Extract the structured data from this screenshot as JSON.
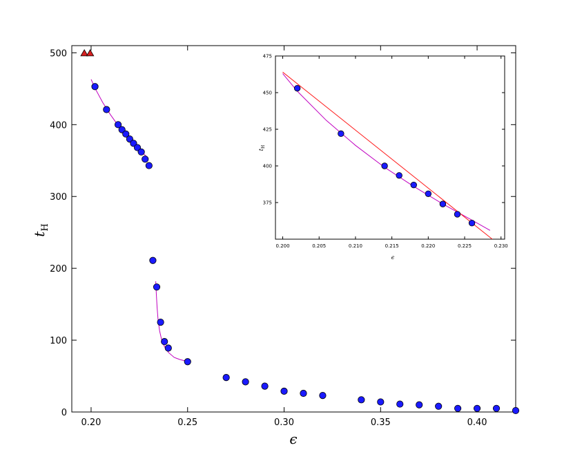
{
  "chart_data": [
    {
      "type": "scatter",
      "xlabel": "ϵ",
      "ylabel": "t_H",
      "ylabel_sub": "H",
      "xlim": [
        0.19,
        0.42
      ],
      "ylim": [
        0,
        510
      ],
      "xticks": [
        0.2,
        0.25,
        0.3,
        0.35,
        0.4
      ],
      "xtick_labels": [
        "0.20",
        "0.25",
        "0.30",
        "0.35",
        "0.40"
      ],
      "yticks": [
        0,
        100,
        200,
        300,
        400,
        500
      ],
      "ytick_labels": [
        "0",
        "100",
        "200",
        "300",
        "400",
        "500"
      ],
      "grid": false,
      "series": [
        {
          "marker": "circle",
          "color": "#1a1aff",
          "x": [
            0.202,
            0.208,
            0.214,
            0.216,
            0.218,
            0.22,
            0.222,
            0.224,
            0.226,
            0.228,
            0.23,
            0.232,
            0.234,
            0.236,
            0.238,
            0.24,
            0.25,
            0.27,
            0.28,
            0.29,
            0.3,
            0.31,
            0.32,
            0.34,
            0.35,
            0.36,
            0.37,
            0.38,
            0.39,
            0.4,
            0.41,
            0.42
          ],
          "y": [
            453,
            421,
            400,
            393,
            387,
            380,
            374,
            368,
            362,
            352,
            343,
            211,
            174,
            125,
            98,
            89,
            70,
            48,
            42,
            36,
            29,
            26,
            23,
            17,
            14,
            11,
            10,
            8,
            5,
            5,
            5,
            2
          ]
        },
        {
          "marker": "triangle",
          "color": "#d62020",
          "x": [
            0.1965,
            0.1995
          ],
          "y": [
            500,
            500
          ]
        }
      ],
      "fit_lines": [
        {
          "color": "#c000c0",
          "x": [
            0.2,
            0.202,
            0.206,
            0.21,
            0.214,
            0.218,
            0.222,
            0.226,
            0.2285
          ],
          "y": [
            463,
            451,
            431,
            414,
            399,
            386,
            374,
            363,
            356
          ]
        },
        {
          "color": "#c000c0",
          "x": [
            0.2335,
            0.2338,
            0.2342,
            0.2347,
            0.2355,
            0.2365,
            0.238,
            0.24,
            0.243,
            0.246,
            0.249,
            0.25
          ],
          "y": [
            182,
            165,
            145,
            128,
            113,
            101,
            91,
            83,
            76,
            73,
            71,
            71
          ]
        }
      ]
    },
    {
      "type": "scatter",
      "inset": true,
      "xlabel": "ϵ",
      "ylabel": "t_H",
      "ylabel_sub": "H",
      "xlim": [
        0.199,
        0.2305
      ],
      "ylim": [
        350,
        475
      ],
      "xticks": [
        0.2,
        0.205,
        0.21,
        0.215,
        0.22,
        0.225,
        0.23
      ],
      "xtick_labels": [
        "0.200",
        "0.205",
        "0.210",
        "0.215",
        "0.220",
        "0.225",
        "0.230"
      ],
      "yticks": [
        375,
        400,
        425,
        450,
        475
      ],
      "ytick_labels": [
        "375",
        "400",
        "425",
        "450",
        "475"
      ],
      "grid": false,
      "series": [
        {
          "marker": "circle",
          "color": "#1a1aff",
          "x": [
            0.202,
            0.208,
            0.214,
            0.216,
            0.218,
            0.22,
            0.222,
            0.224,
            0.226
          ],
          "y": [
            453,
            422,
            400,
            393.5,
            387,
            381,
            374,
            367,
            361
          ]
        }
      ],
      "fit_lines": [
        {
          "color": "#c000c0",
          "x": [
            0.2,
            0.202,
            0.206,
            0.21,
            0.214,
            0.218,
            0.222,
            0.226,
            0.2285
          ],
          "y": [
            463,
            451,
            431,
            414,
            399,
            386,
            374,
            363,
            356
          ]
        },
        {
          "color": "#ff1a1a",
          "x": [
            0.2,
            0.2288
          ],
          "y": [
            464,
            350
          ]
        }
      ]
    }
  ]
}
